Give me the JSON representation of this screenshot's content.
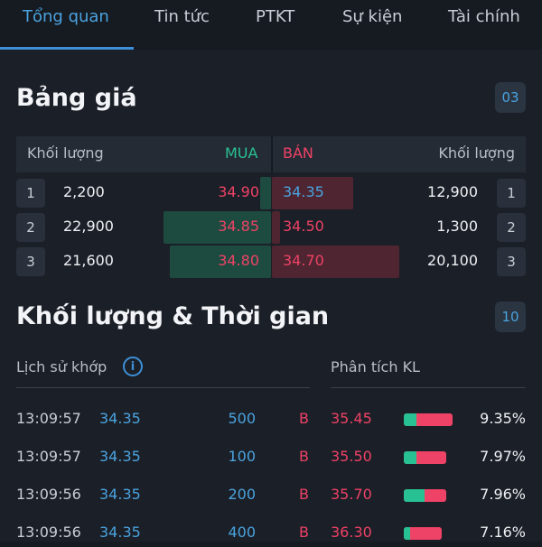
{
  "tabs": [
    "Tổng quan",
    "Tin tức",
    "PTKT",
    "Sự kiện",
    "Tài chính"
  ],
  "orderbook": {
    "title": "Bảng giá",
    "badge": "03",
    "header": {
      "buy_volume": "Khối lượng",
      "buy": "MUA",
      "sell": "BÁN",
      "sell_volume": "Khối lượng"
    },
    "rows": [
      {
        "level": "1",
        "buy_volume": "2,200",
        "buy_price": "34.90",
        "sell_price": "34.35",
        "sell_volume": "12,900",
        "level_right": "1"
      },
      {
        "level": "2",
        "buy_volume": "22,900",
        "buy_price": "34.85",
        "sell_price": "34.50",
        "sell_volume": "1,300",
        "level_right": "2"
      },
      {
        "level": "3",
        "buy_volume": "21,600",
        "buy_price": "34.80",
        "sell_price": "34.70",
        "sell_volume": "20,100",
        "level_right": "3"
      }
    ]
  },
  "volume_time": {
    "title": "Khối lượng & Thời gian",
    "badge": "10",
    "history_label": "Lịch sử khớp",
    "analysis_label": "Phân tích KL",
    "trades": [
      {
        "time": "13:09:57",
        "price": "34.35",
        "volume": "500",
        "side": "B"
      },
      {
        "time": "13:09:57",
        "price": "34.35",
        "volume": "100",
        "side": "B"
      },
      {
        "time": "13:09:56",
        "price": "34.35",
        "volume": "200",
        "side": "B"
      },
      {
        "time": "13:09:56",
        "price": "34.35",
        "volume": "400",
        "side": "B"
      }
    ],
    "analysis": [
      {
        "price": "35.45",
        "percent": "9.35%"
      },
      {
        "price": "35.50",
        "percent": "7.97%"
      },
      {
        "price": "35.70",
        "percent": "7.96%"
      },
      {
        "price": "36.30",
        "percent": "7.16%"
      }
    ]
  },
  "colors": {
    "accent": "#4aa3df",
    "buy": "#27c193",
    "sell": "#ee4266"
  }
}
